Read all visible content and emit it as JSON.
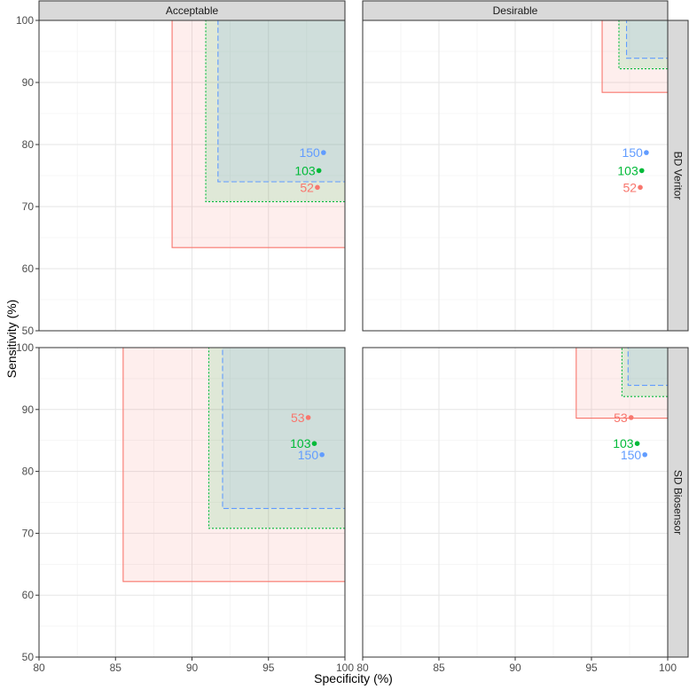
{
  "chart_data": {
    "type": "scatter",
    "xlabel": "Specificity (%)",
    "ylabel": "Sensitivity (%)",
    "xlim": [
      80,
      100
    ],
    "ylim": [
      50,
      100
    ],
    "x_ticks": [
      80,
      85,
      90,
      95,
      100
    ],
    "y_ticks": [
      50,
      60,
      70,
      80,
      90,
      100
    ],
    "columns": [
      "Acceptable",
      "Desirable"
    ],
    "rows": [
      "BD Veritor",
      "SD Biosensor"
    ],
    "colors": {
      "52": "#f8766d",
      "53": "#f8766d",
      "103": "#00ba38",
      "150": "#619cff"
    },
    "panels": [
      {
        "column": "Acceptable",
        "row": "BD Veritor",
        "regions": [
          {
            "n": "52",
            "spec_min": 88.7,
            "sens_min": 63.4,
            "style": "solid"
          },
          {
            "n": "103",
            "spec_min": 90.9,
            "sens_min": 70.8,
            "style": "dotted"
          },
          {
            "n": "150",
            "spec_min": 91.7,
            "sens_min": 74.0,
            "style": "dashed"
          }
        ],
        "points": [
          {
            "label": "150",
            "specificity": 98.6,
            "sensitivity": 78.7
          },
          {
            "label": "103",
            "specificity": 98.3,
            "sensitivity": 75.8
          },
          {
            "label": "52",
            "specificity": 98.2,
            "sensitivity": 73.1
          }
        ]
      },
      {
        "column": "Desirable",
        "row": "BD Veritor",
        "regions": [
          {
            "n": "52",
            "spec_min": 95.7,
            "sens_min": 88.4,
            "style": "solid"
          },
          {
            "n": "103",
            "spec_min": 96.8,
            "sens_min": 92.2,
            "style": "dotted"
          },
          {
            "n": "150",
            "spec_min": 97.3,
            "sens_min": 93.9,
            "style": "dashed"
          }
        ],
        "points": [
          {
            "label": "150",
            "specificity": 98.6,
            "sensitivity": 78.7
          },
          {
            "label": "103",
            "specificity": 98.3,
            "sensitivity": 75.8
          },
          {
            "label": "52",
            "specificity": 98.2,
            "sensitivity": 73.1
          }
        ]
      },
      {
        "column": "Acceptable",
        "row": "SD Biosensor",
        "regions": [
          {
            "n": "53",
            "spec_min": 85.5,
            "sens_min": 62.2,
            "style": "solid"
          },
          {
            "n": "103",
            "spec_min": 91.1,
            "sens_min": 70.8,
            "style": "dotted"
          },
          {
            "n": "150",
            "spec_min": 92.0,
            "sens_min": 74.0,
            "style": "dashed"
          }
        ],
        "points": [
          {
            "label": "53",
            "specificity": 97.6,
            "sensitivity": 88.7
          },
          {
            "label": "103",
            "specificity": 98.0,
            "sensitivity": 84.5
          },
          {
            "label": "150",
            "specificity": 98.5,
            "sensitivity": 82.7
          }
        ]
      },
      {
        "column": "Desirable",
        "row": "SD Biosensor",
        "regions": [
          {
            "n": "53",
            "spec_min": 94.0,
            "sens_min": 88.6,
            "style": "solid"
          },
          {
            "n": "103",
            "spec_min": 97.0,
            "sens_min": 92.1,
            "style": "dotted"
          },
          {
            "n": "150",
            "spec_min": 97.4,
            "sens_min": 93.9,
            "style": "dashed"
          }
        ],
        "points": [
          {
            "label": "53",
            "specificity": 97.6,
            "sensitivity": 88.7
          },
          {
            "label": "103",
            "specificity": 98.0,
            "sensitivity": 84.5
          },
          {
            "label": "150",
            "specificity": 98.5,
            "sensitivity": 82.7
          }
        ]
      }
    ]
  }
}
